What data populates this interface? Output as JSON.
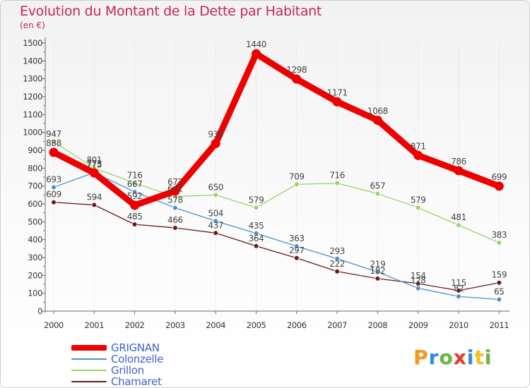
{
  "title": "Evolution du Montant de la Dette par Habitant",
  "unit_label": "(en €)",
  "logo": {
    "text": "Proxiti",
    "letters": [
      {
        "ch": "P",
        "color": "#f39a1e"
      },
      {
        "ch": "r",
        "color": "#2f8fd8"
      },
      {
        "ch": "o",
        "color": "#69b83a"
      },
      {
        "ch": "x",
        "color": "#e63b2e"
      },
      {
        "ch": "i",
        "color": "#2f8fd8"
      },
      {
        "ch": "t",
        "color": "#f3c41e"
      },
      {
        "ch": "i",
        "color": "#69b83a"
      }
    ]
  },
  "chart_data": {
    "type": "line",
    "title": "Evolution du Montant de la Dette par Habitant",
    "ylabel": "(en €)",
    "xlabel": "",
    "x": [
      "2000",
      "2001",
      "2002",
      "2003",
      "2004",
      "2005",
      "2006",
      "2007",
      "2008",
      "2009",
      "2010",
      "2011"
    ],
    "ylim": [
      0,
      1500
    ],
    "yticks": [
      0,
      100,
      200,
      300,
      400,
      500,
      600,
      700,
      800,
      900,
      1000,
      1100,
      1200,
      1300,
      1400,
      1500
    ],
    "grid": "vertical-dotted",
    "legend_position": "bottom-left",
    "series": [
      {
        "name": "Chamaret",
        "color": "#6b1a1a",
        "values": [
          609,
          594,
          485,
          466,
          437,
          364,
          297,
          222,
          182,
          154,
          115,
          159
        ],
        "labels": [
          "609",
          "594",
          "485",
          "466",
          "437",
          "364",
          "297",
          "222",
          "182",
          "154",
          "115",
          "159"
        ]
      },
      {
        "name": "Colonzelle",
        "color": "#4f8fcf",
        "values": [
          693,
          775,
          667,
          578,
          504,
          435,
          363,
          293,
          219,
          128,
          82,
          65
        ],
        "labels": [
          "693",
          "775",
          "667",
          "578",
          "504",
          "435",
          "363",
          "293",
          "219",
          "128",
          "82",
          "65"
        ]
      },
      {
        "name": "Grillon",
        "color": "#99d46a",
        "values": [
          947,
          801,
          716,
          641,
          650,
          579,
          709,
          716,
          657,
          579,
          481,
          383
        ],
        "labels": [
          "947",
          "801",
          "716",
          "641",
          "650",
          "579",
          "709",
          "716",
          "657",
          "579",
          "481",
          "383"
        ]
      },
      {
        "name": "GRIGNAN",
        "color": "#ee0000",
        "values": [
          888,
          773,
          592,
          672,
          938,
          1440,
          1298,
          1171,
          1068,
          871,
          786,
          699
        ],
        "labels": [
          "888",
          "773",
          "592",
          "672",
          "938",
          "1440",
          "1298",
          "1171",
          "1068",
          "871",
          "786",
          "699"
        ]
      }
    ]
  },
  "legend": [
    {
      "name": "GRIGNAN",
      "color": "#ee0000",
      "thickness": "thick"
    },
    {
      "name": "Colonzelle",
      "color": "#4f8fcf",
      "thickness": "thin"
    },
    {
      "name": "Grillon",
      "color": "#99d46a",
      "thickness": "thin"
    },
    {
      "name": "Chamaret",
      "color": "#6b1a1a",
      "thickness": "thin"
    }
  ]
}
